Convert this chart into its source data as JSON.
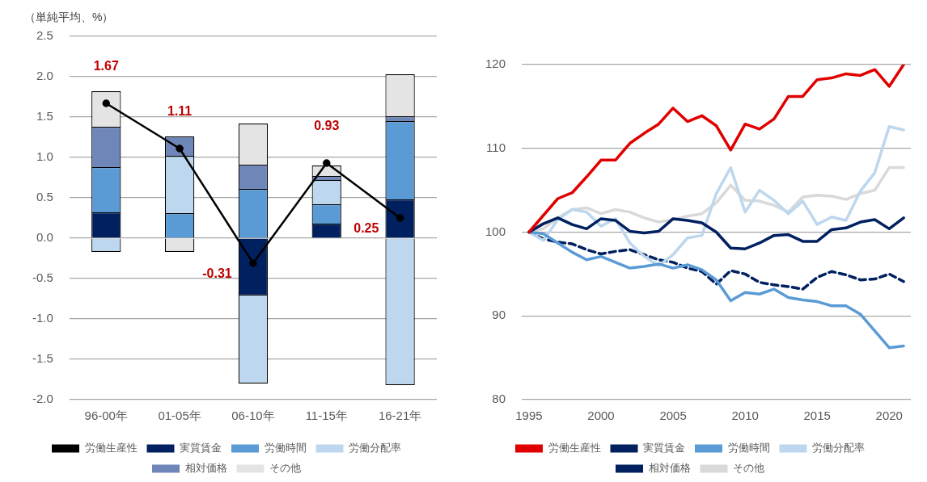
{
  "chart_data": [
    {
      "type": "bar",
      "ylabel": "（単純平均、%）",
      "stacked": true,
      "grid": "y",
      "legend": "bottom",
      "categories": [
        "96-00年",
        "01-05年",
        "06-10年",
        "11-15年",
        "16-21年"
      ],
      "ylim": [
        -2.0,
        2.5
      ],
      "yticks": [
        {
          "value": -2,
          "label": "-2.0"
        },
        {
          "value": -1.5,
          "label": "-1.5"
        },
        {
          "value": -1,
          "label": "-1.0"
        },
        -0.5,
        {
          "value": 0,
          "label": "0.0"
        },
        0.5,
        {
          "value": 1,
          "label": "1.0"
        },
        1.5,
        {
          "value": 2,
          "label": "2.0"
        },
        2.5
      ],
      "series": [
        {
          "name": "実質賃金",
          "color": "#002060",
          "values": [
            0.32,
            0,
            -0.71,
            0.18,
            0.48
          ]
        },
        {
          "name": "労働時間",
          "color": "#5b9bd5",
          "values": [
            0.56,
            0.31,
            0.61,
            0.24,
            0.97
          ]
        },
        {
          "name": "労働分配率",
          "color": "#bdd7ee",
          "values": [
            -0.17,
            0.71,
            -1.09,
            0.3,
            -1.82
          ]
        },
        {
          "name": "相対価格",
          "color": "#6f86b8",
          "values": [
            0.5,
            0.24,
            0.3,
            0.05,
            0.06
          ]
        },
        {
          "name": "その他",
          "color": "#e4e4e4",
          "values": [
            0.44,
            -0.17,
            0.51,
            0.13,
            0.52
          ]
        },
        {
          "name": "労働生産性",
          "type": "line",
          "color": "#000000",
          "marker": "circle",
          "values": [
            1.67,
            1.11,
            -0.31,
            0.93,
            0.25
          ],
          "value_labels": [
            "1.67",
            "1.11",
            "-0.31",
            "0.93",
            "0.25"
          ]
        }
      ]
    },
    {
      "type": "line",
      "grid": "y",
      "legend": "bottom",
      "marker": "none",
      "x": [
        1995,
        1996,
        1997,
        1998,
        1999,
        2000,
        2001,
        2002,
        2003,
        2004,
        2005,
        2006,
        2007,
        2008,
        2009,
        2010,
        2011,
        2012,
        2013,
        2014,
        2015,
        2016,
        2017,
        2018,
        2019,
        2020,
        2021
      ],
      "xlim": [
        1994.5,
        2021.5
      ],
      "xticks": [
        1995,
        2000,
        2005,
        2010,
        2015,
        2020
      ],
      "ylim": [
        80,
        120
      ],
      "yticks": [
        80,
        90,
        100,
        110,
        120
      ],
      "series": [
        {
          "name": "労働生産性",
          "color": "#e00000",
          "values": [
            100,
            102.0,
            104.0,
            104.7,
            106.6,
            108.6,
            108.6,
            110.6,
            111.8,
            112.9,
            114.8,
            113.2,
            113.9,
            112.7,
            109.8,
            112.9,
            112.3,
            113.5,
            116.2,
            116.2,
            118.2,
            118.4,
            118.9,
            118.7,
            119.4,
            117.4,
            120
          ]
        },
        {
          "name": "実質賃金",
          "color": "#002060",
          "values": [
            100,
            101.0,
            101.7,
            100.9,
            100.4,
            101.6,
            101.4,
            100.1,
            99.9,
            100.1,
            101.6,
            101.4,
            101.1,
            100.0,
            98.1,
            98.0,
            98.7,
            99.6,
            99.7,
            98.9,
            98.9,
            100.3,
            100.5,
            101.2,
            101.5,
            100.4,
            101.7
          ]
        },
        {
          "name": "労働時間",
          "color": "#5b9bd5",
          "values": [
            100,
            99.8,
            98.7,
            97.6,
            96.7,
            97.1,
            96.4,
            95.7,
            95.9,
            96.2,
            95.7,
            96.1,
            95.5,
            94.3,
            91.8,
            92.8,
            92.6,
            93.2,
            92.2,
            91.9,
            91.7,
            91.2,
            91.2,
            90.2,
            88.2,
            86.2,
            86.4
          ]
        },
        {
          "name": "労働分配率",
          "color": "#bdd7ee",
          "values": [
            100,
            99.0,
            101.5,
            102.7,
            102.4,
            100.7,
            101.6,
            98.7,
            97.1,
            96.0,
            97.3,
            99.3,
            99.6,
            104.6,
            107.7,
            102.4,
            105.0,
            103.8,
            102.2,
            103.7,
            100.9,
            101.8,
            101.4,
            104.9,
            107.1,
            112.6,
            112.2
          ]
        },
        {
          "name": "相対価格",
          "color": "#002060",
          "line_style": "dashed",
          "values": [
            100,
            99.2,
            98.8,
            98.6,
            97.9,
            97.4,
            97.7,
            97.9,
            97.3,
            96.7,
            96.4,
            95.7,
            95.3,
            93.8,
            95.4,
            95.0,
            94.0,
            93.7,
            93.5,
            93.2,
            94.6,
            95.3,
            94.9,
            94.3,
            94.4,
            95.0,
            94.1
          ]
        },
        {
          "name": "その他",
          "color": "#d9d9d9",
          "values": [
            100,
            100.4,
            101.7,
            102.7,
            102.9,
            102.2,
            102.7,
            102.4,
            101.7,
            101.2,
            101.5,
            101.9,
            102.2,
            103.5,
            105.6,
            103.8,
            103.7,
            103.2,
            102.4,
            104.2,
            104.4,
            104.3,
            103.9,
            104.6,
            105.0,
            107.7,
            107.7
          ]
        }
      ]
    }
  ]
}
